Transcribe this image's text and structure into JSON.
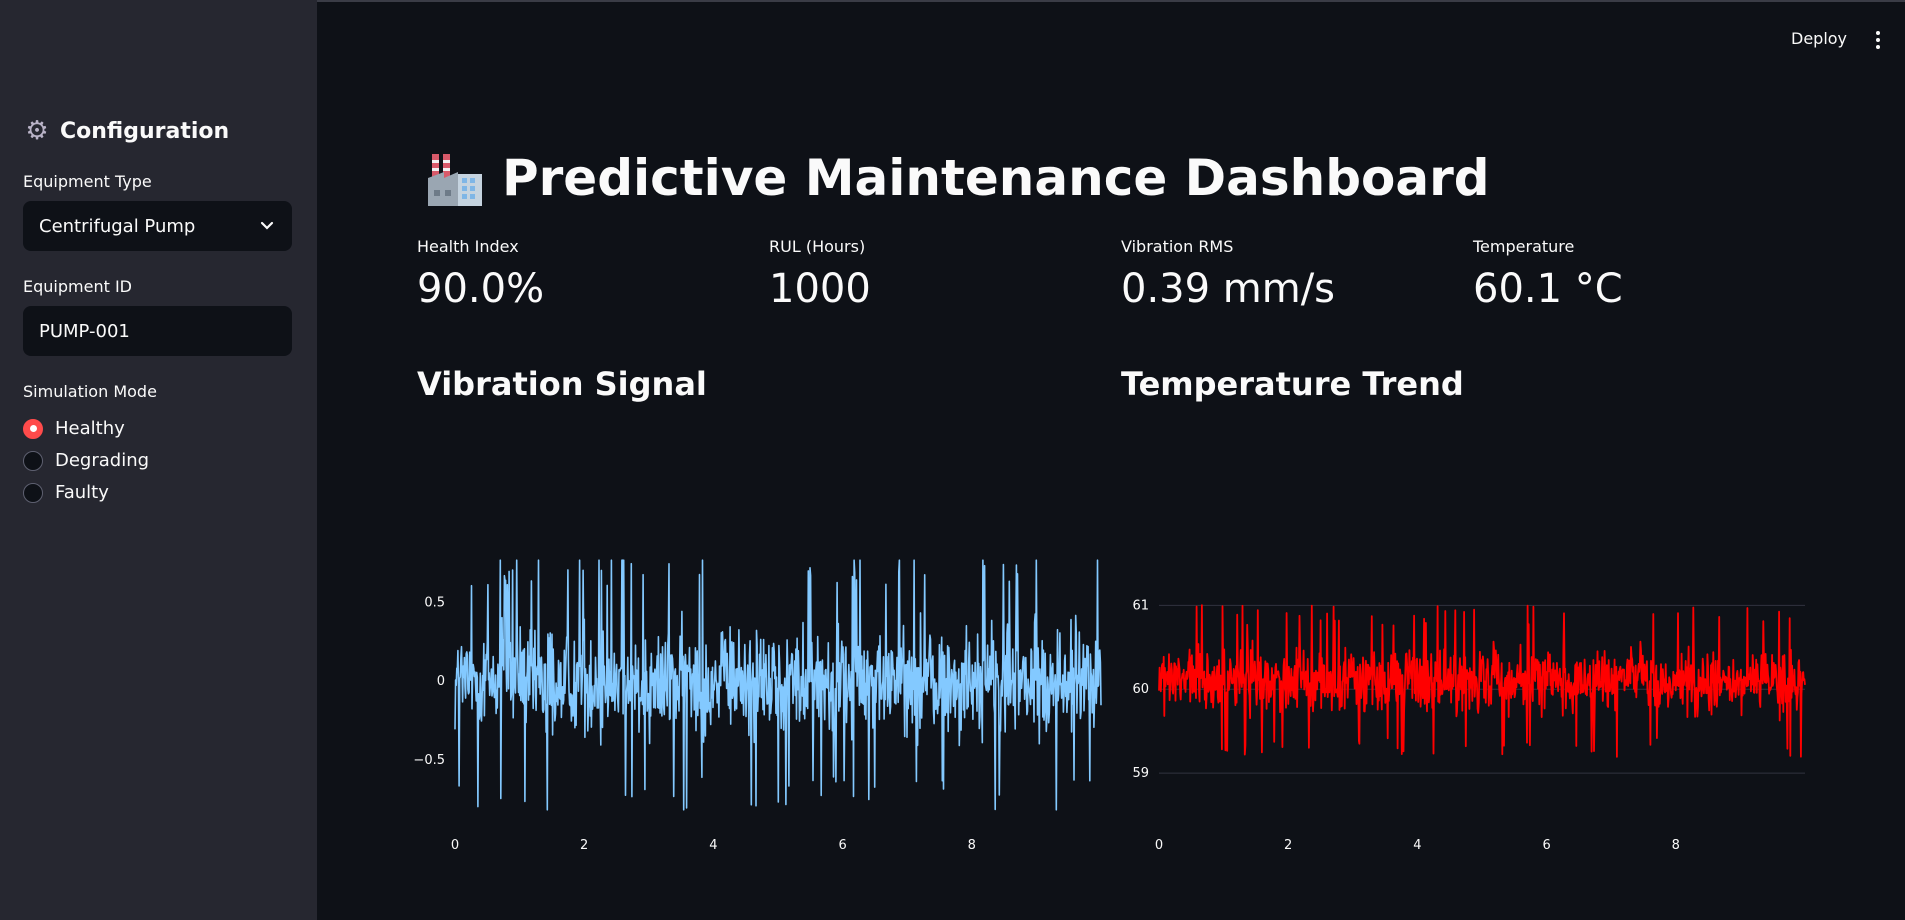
{
  "sidebar": {
    "title": "Configuration",
    "title_icon": "gear-icon",
    "equipment_type_label": "Equipment Type",
    "equipment_type_value": "Centrifugal Pump",
    "equipment_id_label": "Equipment ID",
    "equipment_id_value": "PUMP-001",
    "simulation_mode_label": "Simulation Mode",
    "modes": [
      {
        "label": "Healthy",
        "selected": true
      },
      {
        "label": "Degrading",
        "selected": false
      },
      {
        "label": "Faulty",
        "selected": false
      }
    ],
    "accent_color": "#ff4b4b"
  },
  "header": {
    "deploy_label": "Deploy",
    "menu_icon": "kebab-menu-icon"
  },
  "main": {
    "title": "Predictive Maintenance Dashboard",
    "title_icon": "factory-icon",
    "metrics": [
      {
        "label": "Health Index",
        "value": "90.0%"
      },
      {
        "label": "RUL (Hours)",
        "value": "1000"
      },
      {
        "label": "Vibration RMS",
        "value": "0.39 mm/s"
      },
      {
        "label": "Temperature",
        "value": "60.1 °C"
      }
    ],
    "vibration_title": "Vibration Signal",
    "temperature_title": "Temperature Trend"
  },
  "chart_data": [
    {
      "type": "line",
      "title": "Vibration Signal",
      "color": "#83c9ff",
      "xlim": [
        0,
        10
      ],
      "ylim": [
        -0.85,
        0.8
      ],
      "x_ticks": [
        "0",
        "2",
        "4",
        "6",
        "8"
      ],
      "y_ticks": [
        "0.5",
        "0",
        "−0.5"
      ],
      "grid": false,
      "signal": "dense noise centered on 0, roughly ±0.55 with peaks to ±0.8"
    },
    {
      "type": "line",
      "title": "Temperature Trend",
      "color": "#ff0000",
      "xlim": [
        0,
        10
      ],
      "ylim": [
        58.5,
        61.6
      ],
      "x_ticks": [
        "0",
        "2",
        "4",
        "6",
        "8"
      ],
      "y_ticks": [
        "61",
        "60",
        "59"
      ],
      "grid": true,
      "signal": "dense noise centered near 60.1, range roughly 58.8 to 61.7"
    }
  ]
}
